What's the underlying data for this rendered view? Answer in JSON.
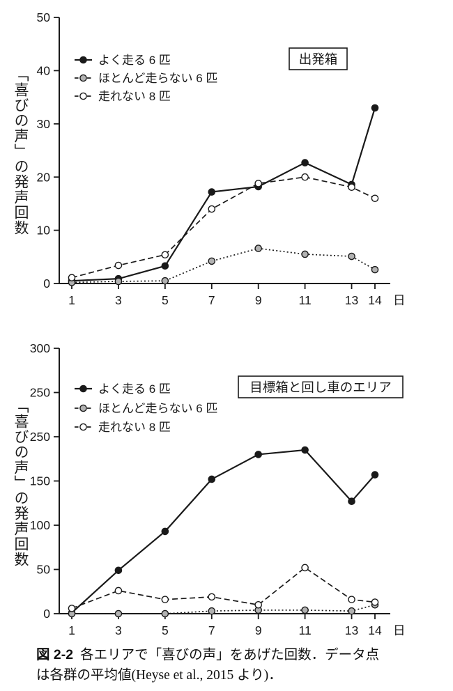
{
  "page": {
    "background": "#ffffff"
  },
  "colors": {
    "ink": "#1a1a1a",
    "gray_marker": "#b2b2b2",
    "open_marker": "#ffffff",
    "box_border": "#1a1a1a"
  },
  "chart_data": [
    {
      "type": "line",
      "title": "出発箱",
      "ylabel": "「喜びの声」の発声回数",
      "xunit": "日",
      "x": [
        1,
        3,
        5,
        7,
        9,
        11,
        13,
        14
      ],
      "xtick_labels": [
        "1",
        "3",
        "5",
        "7",
        "9",
        "11",
        "13",
        "14"
      ],
      "ylim": [
        0,
        50
      ],
      "yticks": [
        0,
        10,
        20,
        30,
        40,
        50
      ],
      "ytick_labels": [
        "0",
        "10",
        "20",
        "30",
        "40",
        "50"
      ],
      "grid": false,
      "legend_position": "upper-left-inside",
      "series": [
        {
          "name": "よく走る 6 匹",
          "line": "solid",
          "marker": "filled-black",
          "values": [
            0.5,
            0.9,
            3.3,
            17.2,
            18.2,
            22.7,
            18.6,
            33
          ]
        },
        {
          "name": "ほとんど走らない 6 匹",
          "line": "dotted",
          "marker": "filled-gray",
          "values": [
            0.2,
            0.4,
            0.5,
            4.2,
            6.6,
            5.5,
            5.1,
            2.6
          ]
        },
        {
          "name": "走れない 8 匹",
          "line": "dashed",
          "marker": "open",
          "values": [
            1.1,
            3.4,
            5.4,
            14,
            18.8,
            20,
            18.1,
            16
          ]
        }
      ]
    },
    {
      "type": "line",
      "title": "目標箱と回し車のエリア",
      "ylabel": "「喜びの声」の発声回数",
      "xunit": "日",
      "x": [
        1,
        3,
        5,
        7,
        9,
        11,
        13,
        14
      ],
      "xtick_labels": [
        "1",
        "3",
        "5",
        "7",
        "9",
        "11",
        "13",
        "14"
      ],
      "ylim": [
        0,
        300
      ],
      "yticks": [
        0,
        50,
        100,
        150,
        200,
        250,
        300
      ],
      "ytick_labels": [
        "0",
        "50",
        "100",
        "150",
        "250",
        "250",
        "300"
      ],
      "grid": false,
      "legend_position": "upper-left-inside",
      "series": [
        {
          "name": "よく走る 6 匹",
          "line": "solid",
          "marker": "filled-black",
          "values": [
            1,
            49,
            93,
            152,
            180,
            185,
            127,
            157
          ]
        },
        {
          "name": "ほとんど走らない 6 匹",
          "line": "dotted",
          "marker": "filled-gray",
          "values": [
            0,
            0,
            0,
            3,
            4,
            4,
            3,
            10
          ]
        },
        {
          "name": "走れない 8 匹",
          "line": "dashed",
          "marker": "open",
          "values": [
            6,
            26,
            16,
            19,
            10,
            52,
            16,
            13
          ]
        }
      ]
    }
  ],
  "caption": {
    "label": "図 2-2",
    "line1": "各エリアで「喜びの声」をあげた回数．データ点",
    "line2": "は各群の平均値(Heyse et al., 2015 より)．"
  }
}
